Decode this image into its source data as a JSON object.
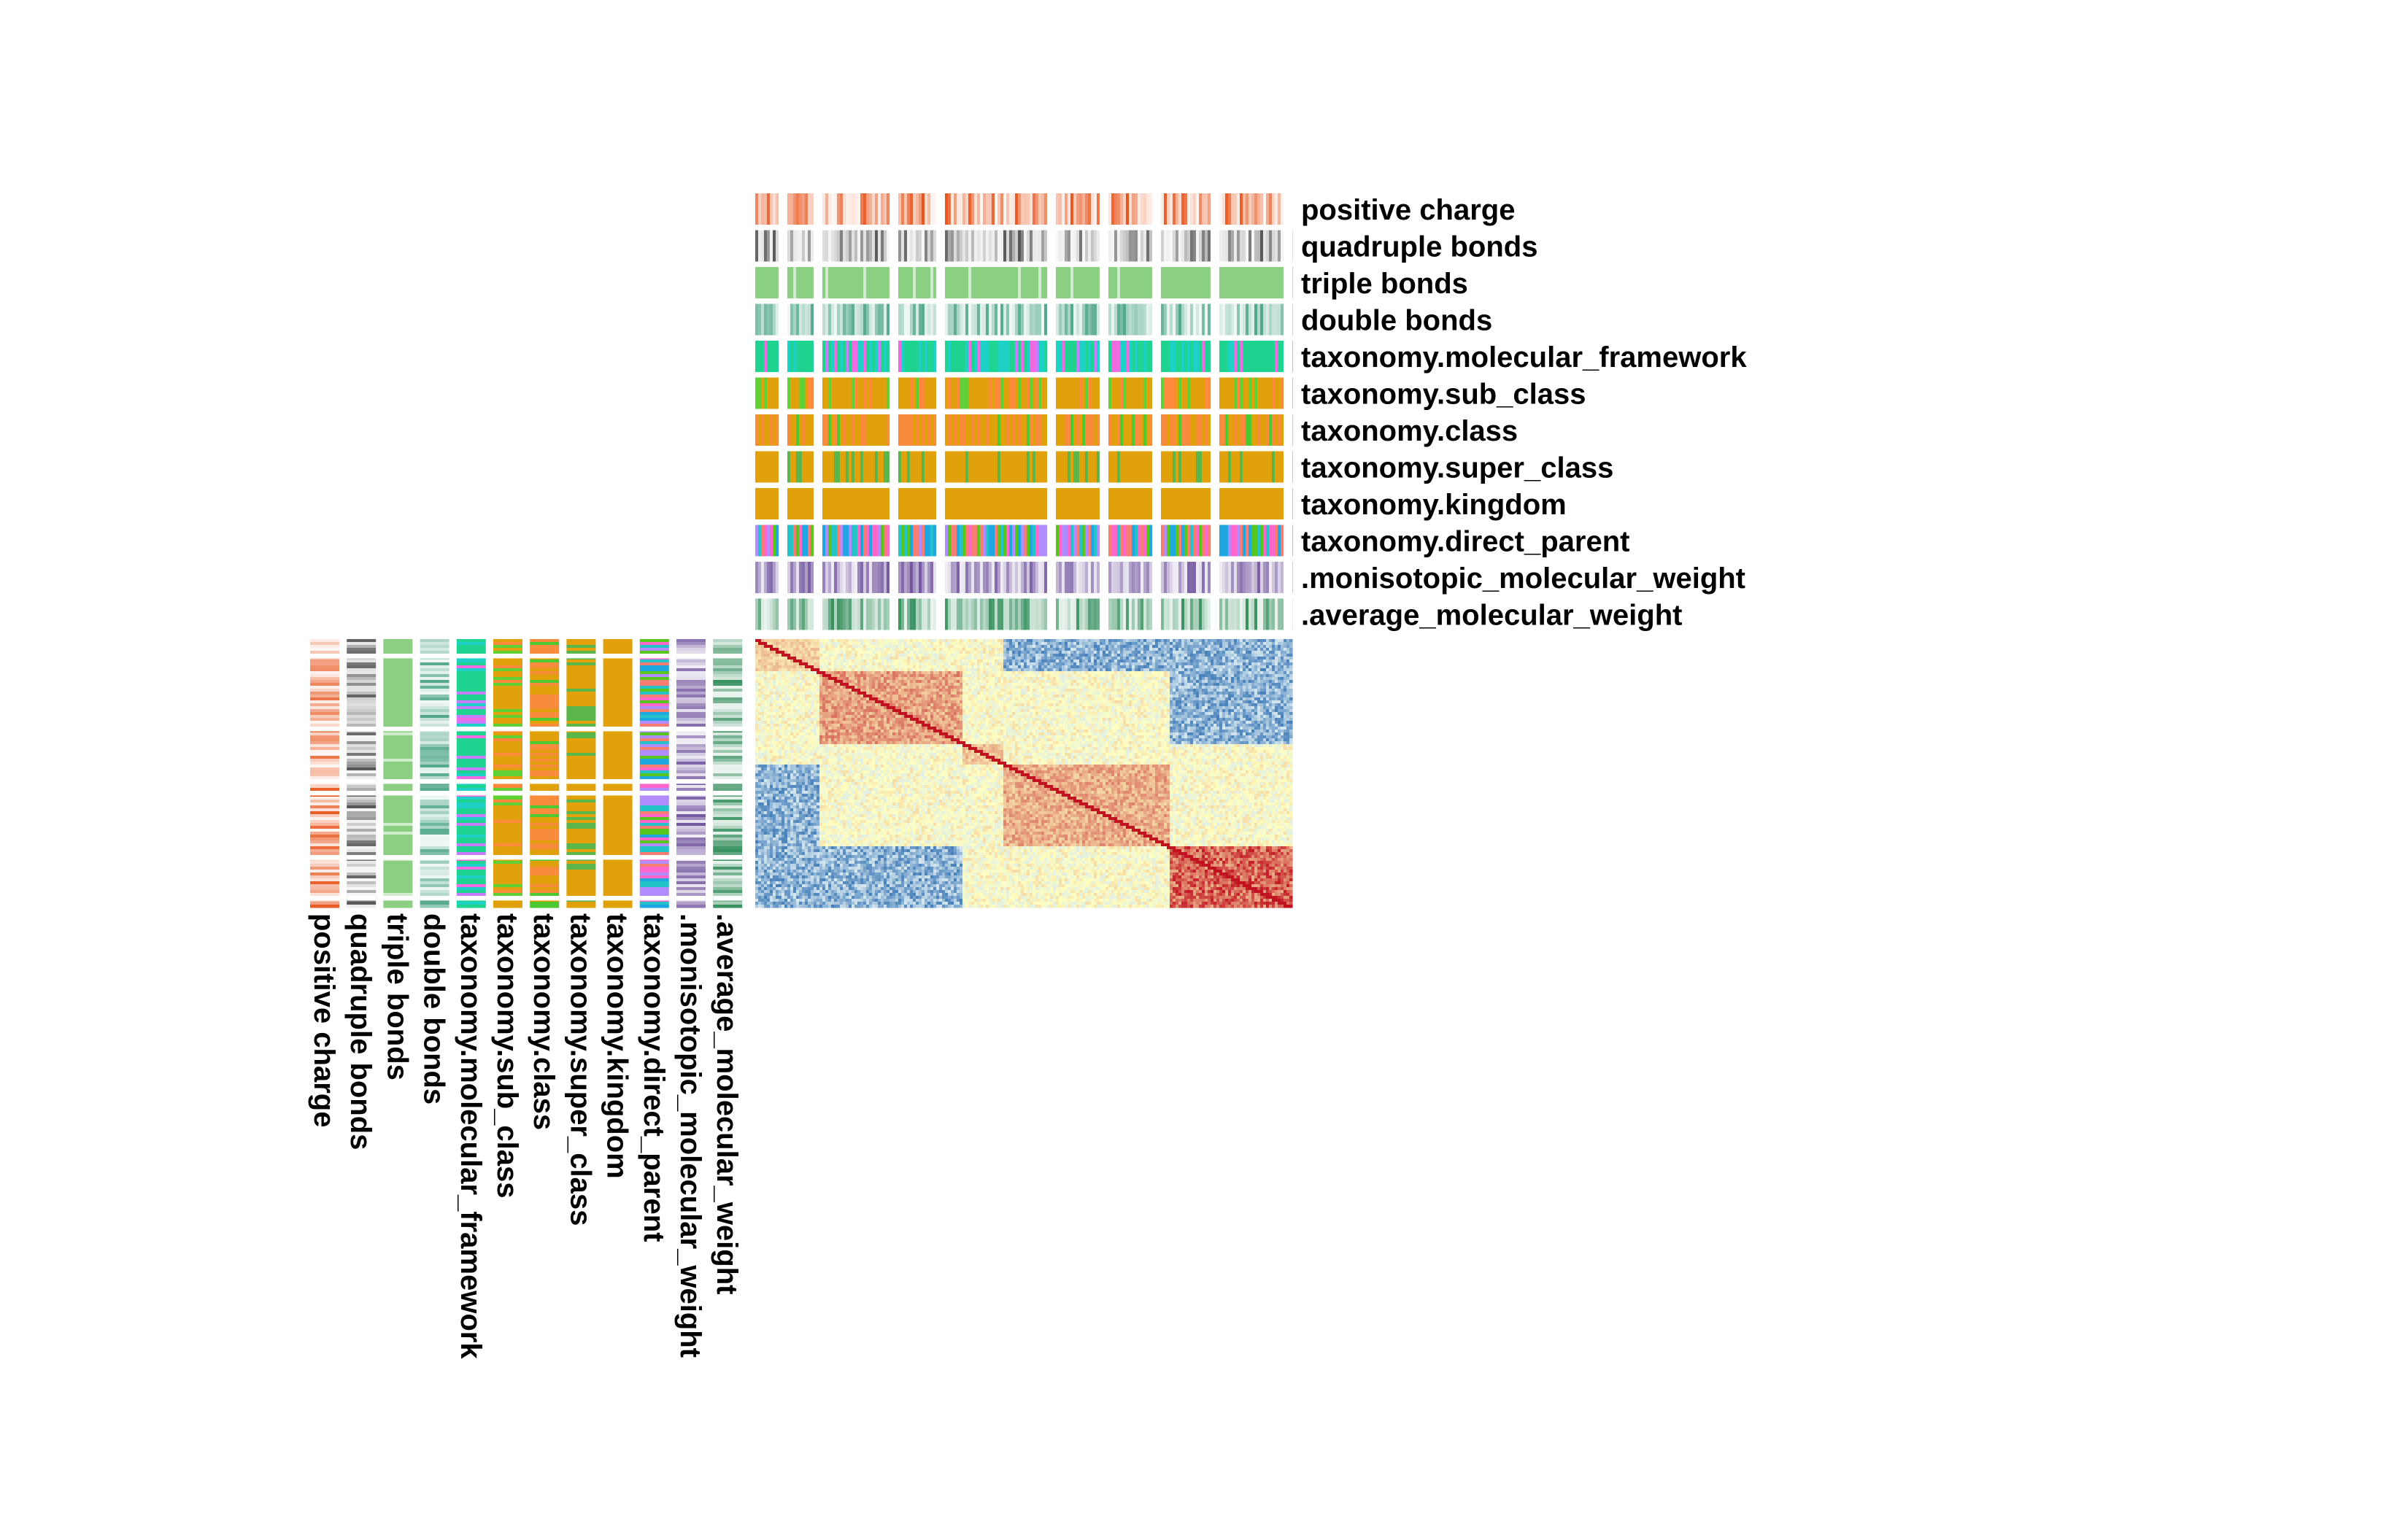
{
  "chart_data": {
    "type": "heatmap",
    "title": "",
    "subtitle": "",
    "annotation_tracks": [
      "positive charge",
      "quadruple bonds",
      "triple bonds",
      "double bonds",
      "taxonomy.molecular_framework",
      "taxonomy.sub_class",
      "taxonomy.class",
      "taxonomy.super_class",
      "taxonomy.kingdom",
      "taxonomy.direct_parent",
      ".monisotopic_molecular_weight",
      ".average_molecular_weight"
    ],
    "track_kind": {
      "positive charge": "continuous",
      "quadruple bonds": "continuous",
      "triple bonds": "continuous",
      "double bonds": "continuous",
      "taxonomy.molecular_framework": "categorical",
      "taxonomy.sub_class": "categorical",
      "taxonomy.class": "categorical",
      "taxonomy.super_class": "categorical",
      "taxonomy.kingdom": "categorical",
      "taxonomy.direct_parent": "categorical",
      ".monisotopic_molecular_weight": "continuous",
      ".average_molecular_weight": "continuous"
    },
    "column_annotation_position": "top",
    "row_annotation_position": "left",
    "matrix_layout": "symmetric similarity matrix, diagonal top-left to bottom-right, red on diagonal",
    "cluster_groups": [
      "A",
      "A",
      "A",
      "B",
      "B",
      "B",
      "B",
      "B",
      "B",
      "B",
      "C",
      "C",
      "D",
      "D",
      "D",
      "D",
      "D",
      "D",
      "D",
      "D",
      "E",
      "E",
      "E",
      "E",
      "E",
      "E"
    ],
    "cluster_strength": {
      "A": 0.25,
      "B": 0.45,
      "C": 0.3,
      "D": 0.4,
      "E": 0.7
    },
    "cross_group_negative": {
      "A-E": true,
      "B-E": true,
      "A-D": true
    },
    "legend": "none",
    "grid": false,
    "colors": {
      "heatmap_low": "#2c6cb0",
      "heatmap_mid": "#ffffbf",
      "heatmap_high": "#c1121f",
      "positive_charge": "#e8541b",
      "quadruple_bonds": "#555555",
      "triple_bonds": "#8bcf82",
      "double_bonds": "#3a9c7a",
      "molecular_framework": [
        "#1fd491",
        "#1ed1c6",
        "#f06ae2",
        "#c77cff"
      ],
      "sub_class": [
        "#e0a10a",
        "#1ea7e0",
        "#f66fd0",
        "#61d034",
        "#ff8a3c"
      ],
      "class": [
        "#f98c3c",
        "#2aa5f0",
        "#4cc931",
        "#e0a10a"
      ],
      "super_class": [
        "#e0a10a",
        "#b48ef2",
        "#2a97f0",
        "#5ab54a"
      ],
      "kingdom": [
        "#e0a10a"
      ],
      "direct_parent": [
        "#ff66cc",
        "#1ea7e0",
        "#56c61c",
        "#b18cff",
        "#f67d72",
        "#23c3c9"
      ],
      "monisotopic_weight": "#6b4e9b",
      "average_weight": "#2e8b57"
    }
  }
}
